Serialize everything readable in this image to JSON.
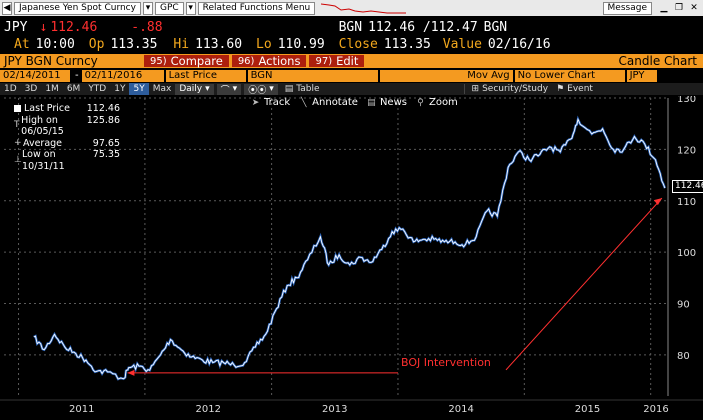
{
  "topbar": {
    "security_name": "Japanese Yen Spot Curncy",
    "gpc": "GPC",
    "related": "Related Functions  Menu",
    "message": "Message"
  },
  "quote": {
    "ticker": "JPY",
    "last": "112.46",
    "change": "-.88",
    "source": "BGN",
    "bid_ask": "112.46 /112.47",
    "source2": "BGN",
    "at_label": "At",
    "at": "10:00",
    "op_label": "Op",
    "open": "113.35",
    "hi_label": "Hi",
    "high": "113.60",
    "lo_label": "Lo",
    "low": "110.99",
    "close_label": "Close",
    "close": "113.35",
    "value_label": "Value",
    "value": "02/16/16"
  },
  "menubar": {
    "ticker": "JPY BGN Curncy",
    "compare_num": "95)",
    "compare": "Compare",
    "actions_num": "96)",
    "actions": "Actions",
    "edit_num": "97)",
    "edit": "Edit",
    "title": "Candle Chart"
  },
  "params": {
    "start_date": "02/14/2011",
    "end_date": "02/11/2016",
    "price_field": "Last Price",
    "source": "BGN",
    "study": "Mov Avg",
    "lower_chart": "No Lower Chart",
    "currency": "JPY"
  },
  "timeframes": [
    "1D",
    "3D",
    "1M",
    "6M",
    "YTD",
    "1Y",
    "5Y",
    "Max"
  ],
  "active_timeframe": "5Y",
  "timeframe_row": {
    "period": "Daily",
    "table": "Table",
    "security_study": "Security/Study",
    "event": "Event"
  },
  "toolbar": {
    "track": "Track",
    "annotate": "Annotate",
    "news": "News",
    "zoom": "Zoom"
  },
  "legend": {
    "last_label": "Last Price",
    "last_value": "112.46",
    "high_label": "High on 06/05/15",
    "high_value": "125.86",
    "avg_label": "Average",
    "avg_value": "97.65",
    "low_label": "Low on 10/31/11",
    "low_value": "75.35"
  },
  "annotation": "BOJ Intervention",
  "last_value_tag": "112.46",
  "colors": {
    "amber": "#f3a81d",
    "orange": "#f49a20",
    "button_red": "#ad1f0d",
    "line": "#ffffff",
    "line_shadow": "#2f6fd0",
    "annotation": "#ff3030"
  },
  "chart_data": {
    "type": "line",
    "title": "",
    "xlabel": "",
    "ylabel": "",
    "ylim": [
      72,
      130
    ],
    "y_ticks": [
      80,
      90,
      100,
      110,
      120,
      130
    ],
    "x_ticks": [
      "2011",
      "2012",
      "2013",
      "2014",
      "2015",
      "2016"
    ],
    "x_tick_dates": [
      "2011-01-01",
      "2012-01-01",
      "2013-01-01",
      "2014-01-01",
      "2015-01-01",
      "2016-01-01"
    ],
    "series": [
      {
        "name": "Last Price",
        "x": [
          "2011-02-14",
          "2011-03-16",
          "2011-04-15",
          "2011-05-15",
          "2011-06-15",
          "2011-07-15",
          "2011-08-15",
          "2011-09-15",
          "2011-10-31",
          "2011-11-15",
          "2011-12-15",
          "2012-01-15",
          "2012-02-15",
          "2012-03-15",
          "2012-04-15",
          "2012-05-15",
          "2012-06-15",
          "2012-07-15",
          "2012-08-15",
          "2012-09-15",
          "2012-10-15",
          "2012-11-15",
          "2012-12-15",
          "2013-01-15",
          "2013-02-15",
          "2013-03-15",
          "2013-04-15",
          "2013-05-22",
          "2013-06-15",
          "2013-07-15",
          "2013-08-15",
          "2013-09-15",
          "2013-10-15",
          "2013-11-15",
          "2013-12-15",
          "2014-01-15",
          "2014-02-15",
          "2014-03-15",
          "2014-04-15",
          "2014-05-15",
          "2014-06-15",
          "2014-07-15",
          "2014-08-15",
          "2014-09-15",
          "2014-10-15",
          "2014-11-15",
          "2014-12-15",
          "2015-01-15",
          "2015-02-15",
          "2015-03-15",
          "2015-04-15",
          "2015-05-15",
          "2015-06-05",
          "2015-07-15",
          "2015-08-15",
          "2015-09-15",
          "2015-10-15",
          "2015-11-15",
          "2015-12-15",
          "2016-01-15",
          "2016-02-11"
        ],
        "y": [
          83.5,
          81.0,
          84.0,
          81.5,
          80.3,
          79.0,
          76.8,
          76.7,
          75.35,
          77.5,
          77.8,
          77.0,
          80.0,
          83.0,
          81.0,
          79.6,
          79.0,
          78.5,
          78.5,
          78.0,
          78.5,
          81.5,
          84.0,
          89.0,
          93.5,
          95.0,
          98.5,
          103.0,
          97.5,
          99.5,
          97.5,
          99.0,
          98.0,
          100.5,
          104.0,
          104.5,
          102.0,
          102.5,
          102.5,
          102.0,
          102.0,
          101.5,
          103.0,
          108.0,
          107.0,
          116.5,
          119.5,
          118.0,
          119.0,
          120.5,
          119.5,
          122.0,
          125.86,
          123.0,
          124.0,
          120.0,
          120.0,
          122.5,
          121.0,
          118.0,
          112.46
        ]
      }
    ],
    "grid": true,
    "legend": "top-left"
  }
}
